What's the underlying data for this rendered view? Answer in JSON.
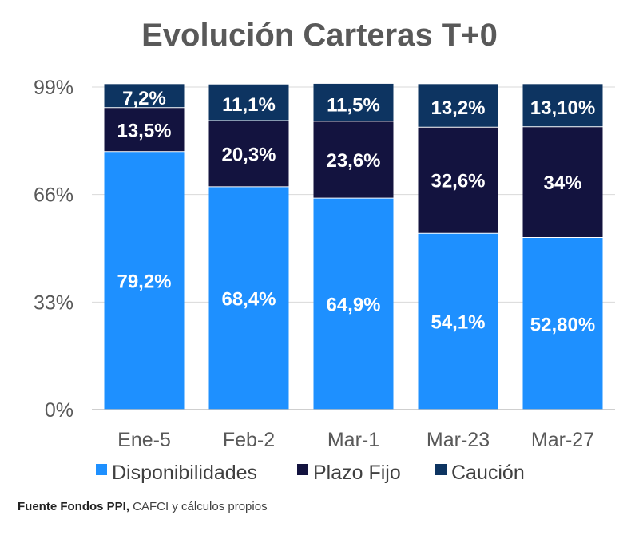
{
  "chart_data": {
    "type": "bar",
    "stacked": true,
    "title": "Evolución Carteras T+0",
    "categories": [
      "Ene-5",
      "Feb-2",
      "Mar-1",
      "Mar-23",
      "Mar-27"
    ],
    "yticks": [
      "0%",
      "33%",
      "66%",
      "99%"
    ],
    "ylim": [
      0,
      100
    ],
    "grid": true,
    "legend_position": "bottom",
    "series": [
      {
        "name": "Disponibilidades",
        "color": "#1e90ff",
        "values": [
          79.2,
          68.4,
          64.9,
          54.1,
          52.8
        ],
        "labels": [
          "79,2%",
          "68,4%",
          "64,9%",
          "54,1%",
          "52,80%"
        ]
      },
      {
        "name": "Plazo Fijo",
        "color": "#13133f",
        "values": [
          13.5,
          20.3,
          23.6,
          32.6,
          34
        ],
        "labels": [
          "13,5%",
          "20,3%",
          "23,6%",
          "32,6%",
          "34%"
        ]
      },
      {
        "name": "Caución",
        "color": "#0d3461",
        "values": [
          7.2,
          11.1,
          11.5,
          13.2,
          13.1
        ],
        "labels": [
          "7,2%",
          "11,1%",
          "11,5%",
          "13,2%",
          "13,10%"
        ]
      }
    ]
  },
  "source": {
    "bold": "Fuente Fondos PPI,",
    "rest": " CAFCI y cálculos propios"
  }
}
